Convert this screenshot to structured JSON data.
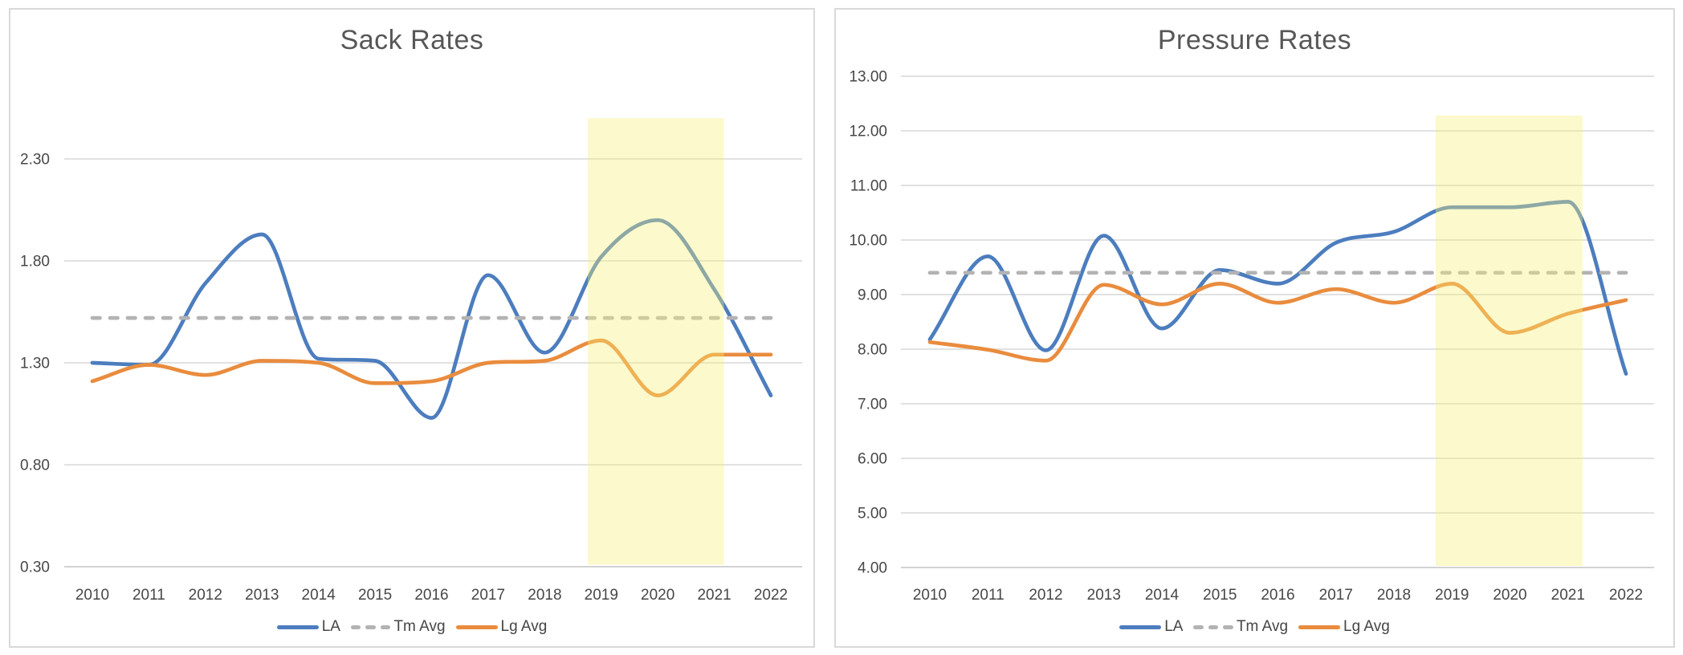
{
  "style": {
    "la_blue": "#4C7DBE",
    "lg_avg_orange": "#E98C3E",
    "tm_avg_gray": "#B3B3B3",
    "highlight_yellow": "rgba(246,240,120,0.38)",
    "gridline": "#D7D7D7",
    "axis_line": "#C3C3C3",
    "tick_text": "#474747",
    "title_text": "#575757",
    "panel_border": "#D9D9D9"
  },
  "chart_data": [
    {
      "type": "line",
      "title": "Sack Rates",
      "x": [
        2010,
        2011,
        2012,
        2013,
        2014,
        2015,
        2016,
        2017,
        2018,
        2019,
        2020,
        2021,
        2022
      ],
      "x_tick_labels": [
        "2010",
        "2011",
        "2012",
        "2013",
        "2014",
        "2015",
        "2016",
        "2017",
        "2018",
        "2019",
        "2020",
        "2021",
        "2022"
      ],
      "y_tick_labels": [
        "0.30",
        "0.80",
        "1.30",
        "1.80",
        "2.30"
      ],
      "ylim": [
        0.3,
        2.55
      ],
      "grid": true,
      "legend_position": "bottom",
      "series": [
        {
          "name": "LA",
          "style": "smooth-line",
          "dash": false,
          "color": "#4C7DBE",
          "values": [
            1.3,
            1.29,
            1.69,
            1.93,
            1.32,
            1.31,
            1.03,
            1.73,
            1.35,
            1.82,
            2.0,
            1.66,
            1.14
          ]
        },
        {
          "name": "Tm Avg",
          "style": "smooth-line",
          "dash": true,
          "color": "#B3B3B3",
          "values": [
            1.52,
            1.52,
            1.52,
            1.52,
            1.52,
            1.52,
            1.52,
            1.52,
            1.52,
            1.52,
            1.52,
            1.52,
            1.52
          ]
        },
        {
          "name": "Lg Avg",
          "style": "smooth-line",
          "dash": false,
          "color": "#E98C3E",
          "values": [
            1.21,
            1.29,
            1.24,
            1.31,
            1.3,
            1.2,
            1.21,
            1.3,
            1.31,
            1.41,
            1.14,
            1.34,
            1.34
          ]
        }
      ],
      "highlight_band": {
        "x_from": 2018.76,
        "x_to": 2021.17,
        "y_from": 0.31,
        "y_to": 2.5,
        "color": "rgba(246,240,120,0.38)"
      }
    },
    {
      "type": "line",
      "title": "Pressure Rates",
      "x": [
        2010,
        2011,
        2012,
        2013,
        2014,
        2015,
        2016,
        2017,
        2018,
        2019,
        2020,
        2021,
        2022
      ],
      "x_tick_labels": [
        "2010",
        "2011",
        "2012",
        "2013",
        "2014",
        "2015",
        "2016",
        "2017",
        "2018",
        "2019",
        "2020",
        "2021",
        "2022"
      ],
      "y_tick_labels": [
        "4.00",
        "5.00",
        "6.00",
        "7.00",
        "8.00",
        "9.00",
        "10.00",
        "11.00",
        "12.00",
        "13.00"
      ],
      "ylim": [
        4.0,
        13.0
      ],
      "grid": true,
      "legend_position": "bottom",
      "series": [
        {
          "name": "LA",
          "style": "smooth-line",
          "dash": false,
          "color": "#4C7DBE",
          "values": [
            8.18,
            9.7,
            7.98,
            10.08,
            8.38,
            9.45,
            9.2,
            9.95,
            10.15,
            10.6,
            10.6,
            10.7,
            7.55
          ]
        },
        {
          "name": "Tm Avg",
          "style": "smooth-line",
          "dash": true,
          "color": "#B3B3B3",
          "values": [
            9.4,
            9.4,
            9.4,
            9.4,
            9.4,
            9.4,
            9.4,
            9.4,
            9.4,
            9.4,
            9.4,
            9.4,
            9.4
          ]
        },
        {
          "name": "Lg Avg",
          "style": "smooth-line",
          "dash": false,
          "color": "#E98C3E",
          "values": [
            8.13,
            7.99,
            7.79,
            9.18,
            8.82,
            9.2,
            8.85,
            9.1,
            8.85,
            9.2,
            8.3,
            8.65,
            8.9
          ]
        }
      ],
      "highlight_band": {
        "x_from": 2018.72,
        "x_to": 2021.25,
        "y_from": 4.03,
        "y_to": 12.28,
        "color": "rgba(246,240,120,0.38)"
      }
    }
  ]
}
